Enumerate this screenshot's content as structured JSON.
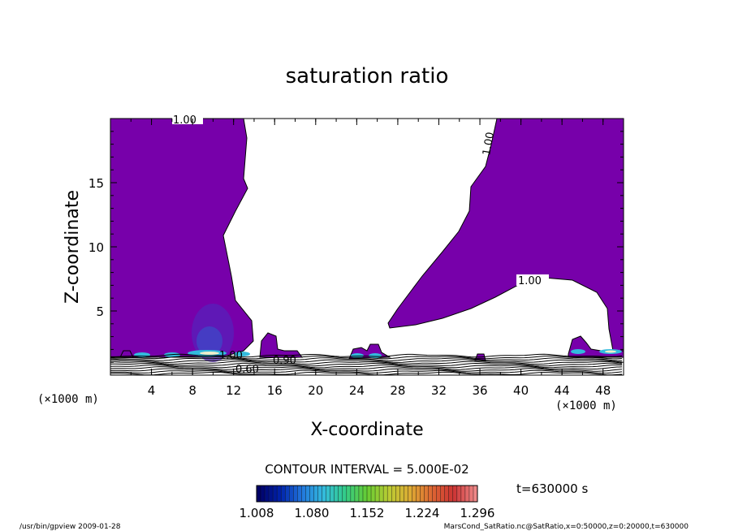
{
  "chart_data": {
    "type": "heatmap",
    "title": "saturation ratio",
    "xlabel": "X-coordinate",
    "ylabel": "Z-coordinate",
    "x_unit": "(×1000 m)",
    "z_unit": "(×1000 m)",
    "xlim": [
      0,
      50
    ],
    "ylim": [
      0,
      20
    ],
    "x_ticks": [
      "4",
      "8",
      "12",
      "16",
      "20",
      "24",
      "28",
      "32",
      "36",
      "40",
      "44",
      "48"
    ],
    "y_ticks": [
      "5",
      "10",
      "15"
    ],
    "contour_interval_text": "CONTOUR INTERVAL = 5.000E-02",
    "contour_labels": [
      "1.00",
      "1.00",
      "1.00",
      "1.00",
      "0.90",
      "0.60"
    ],
    "colorbar": {
      "min": 1.008,
      "max": 1.296,
      "tick_labels": [
        "1.008",
        "1.080",
        "1.152",
        "1.224",
        "1.296"
      ],
      "colors": [
        "#000066",
        "#0022aa",
        "#2277dd",
        "#33bbdd",
        "#33cc88",
        "#66cc33",
        "#bbcc33",
        "#ddaa33",
        "#dd6633",
        "#cc3333",
        "#ee8888"
      ]
    },
    "time_label": "t=630000 s",
    "fill_color": "#7700aa",
    "footer_left": "/usr/bin/gpview   2009-01-28",
    "footer_right": "MarsCond_SatRatio.nc@SatRatio,x=0:50000,z=0:20000,t=630000"
  }
}
